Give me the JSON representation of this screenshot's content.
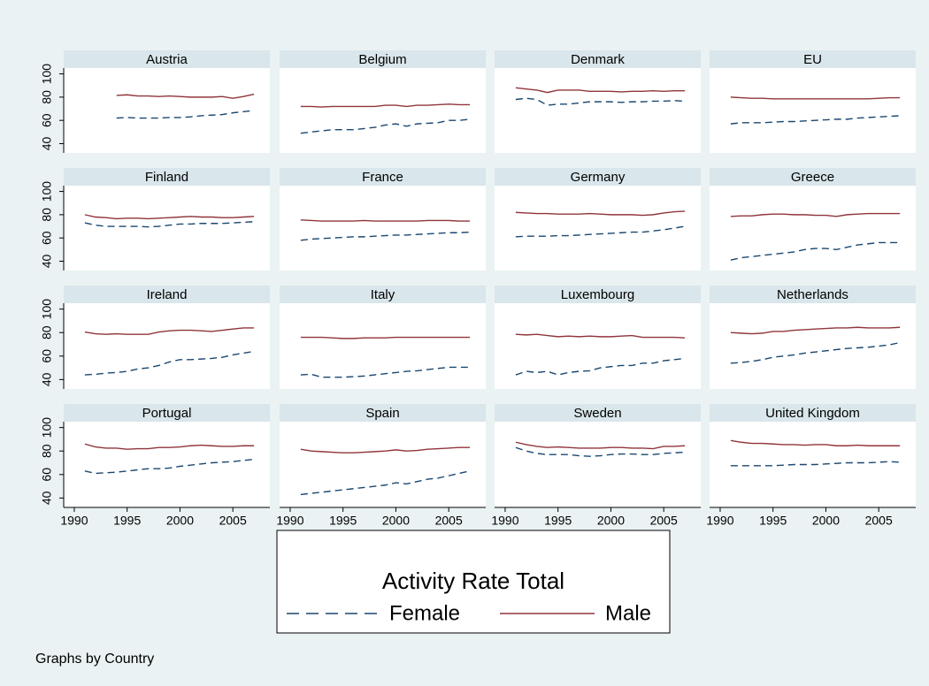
{
  "chart_data": {
    "type": "line",
    "x": [
      1991,
      1992,
      1993,
      1994,
      1995,
      1996,
      1997,
      1998,
      1999,
      2000,
      2001,
      2002,
      2003,
      2004,
      2005,
      2006,
      2007
    ],
    "xlim": [
      1989,
      2008.5
    ],
    "xticks": [
      1990,
      1995,
      2000,
      2005
    ],
    "ylim": [
      32,
      105
    ],
    "yticks": [
      40,
      60,
      80,
      100
    ],
    "series": [
      {
        "name": "Female",
        "color": "#1a476f",
        "dashed": true
      },
      {
        "name": "Male",
        "color": "#90353b",
        "dashed": false
      }
    ],
    "legend_title": "Activity Rate Total",
    "note": "Graphs by Country",
    "panels": [
      {
        "title": "Austria",
        "series": [
          {
            "values": [
              null,
              null,
              null,
              62,
              62.5,
              62,
              62,
              62,
              62.5,
              62.5,
              63,
              64,
              64.5,
              65,
              66.5,
              67.5,
              68.5
            ]
          },
          {
            "values": [
              null,
              null,
              null,
              81.5,
              82,
              81,
              81,
              80.5,
              81,
              80.5,
              80,
              80,
              80,
              80.5,
              79,
              80.5,
              82.5
            ]
          }
        ]
      },
      {
        "title": "Belgium",
        "series": [
          {
            "values": [
              49,
              50,
              51,
              52,
              52,
              52,
              53,
              54,
              56,
              57,
              55,
              57,
              57.5,
              58,
              60,
              60,
              61
            ]
          },
          {
            "values": [
              72,
              72,
              71.5,
              72,
              72,
              72,
              72,
              72,
              73,
              73,
              72,
              73,
              73,
              73.5,
              74,
              73.5,
              73.5
            ]
          }
        ]
      },
      {
        "title": "Denmark",
        "series": [
          {
            "values": [
              78,
              79,
              78,
              73,
              74,
              74,
              75,
              76,
              76,
              76,
              75.5,
              76,
              76,
              76.5,
              76.5,
              77,
              76.5
            ]
          },
          {
            "values": [
              88,
              87,
              86,
              84,
              86,
              86,
              86,
              85,
              85,
              85,
              84.5,
              85,
              85,
              85.5,
              85,
              85.5,
              85.5
            ]
          }
        ]
      },
      {
        "title": "EU",
        "series": [
          {
            "values": [
              57,
              58,
              58,
              58,
              58.5,
              59,
              59,
              59.5,
              60,
              60.5,
              61,
              61,
              62,
              62.5,
              63,
              63.5,
              64
            ]
          },
          {
            "values": [
              80,
              79.5,
              79,
              79,
              78.5,
              78.5,
              78.5,
              78.5,
              78.5,
              78.5,
              78.5,
              78.5,
              78.5,
              78.5,
              79,
              79.5,
              79.5
            ]
          }
        ]
      },
      {
        "title": "Finland",
        "series": [
          {
            "values": [
              73,
              71,
              70,
              70,
              70,
              70,
              69.5,
              70,
              71,
              72,
              72,
              72.5,
              72.5,
              72.5,
              73,
              73.5,
              74
            ]
          },
          {
            "values": [
              80,
              78,
              77.5,
              76.5,
              77,
              77,
              76.5,
              77,
              77.5,
              78,
              78.5,
              78,
              78,
              77.5,
              77.5,
              78,
              78.5
            ]
          }
        ]
      },
      {
        "title": "France",
        "series": [
          {
            "values": [
              58,
              59,
              59.5,
              60,
              60.5,
              61,
              61,
              61.5,
              62,
              62.5,
              62.5,
              63,
              63.5,
              64,
              64.5,
              64.5,
              65
            ]
          },
          {
            "values": [
              75.5,
              75,
              74.5,
              74.5,
              74.5,
              74.5,
              75,
              74.5,
              74.5,
              74.5,
              74.5,
              74.5,
              75,
              75,
              75,
              74.5,
              74.5
            ]
          }
        ]
      },
      {
        "title": "Germany",
        "series": [
          {
            "values": [
              61,
              61.5,
              61.5,
              61.5,
              62,
              62,
              62.5,
              63,
              63.5,
              64,
              64.5,
              65,
              65,
              66,
              67,
              68.5,
              70
            ]
          },
          {
            "values": [
              82,
              81.5,
              81,
              81,
              80.5,
              80.5,
              80.5,
              81,
              80.5,
              80,
              80,
              80,
              79.5,
              80,
              81.5,
              82.5,
              83
            ]
          }
        ]
      },
      {
        "title": "Greece",
        "series": [
          {
            "values": [
              41,
              43,
              44,
              45,
              46,
              47,
              48,
              50,
              51,
              51,
              50,
              52,
              54,
              55,
              56,
              56,
              56
            ]
          },
          {
            "values": [
              78.5,
              79,
              79,
              80,
              80.5,
              80.5,
              80,
              80,
              79.5,
              79.5,
              78.5,
              80,
              80.5,
              81,
              81,
              81,
              81
            ]
          }
        ]
      },
      {
        "title": "Ireland",
        "series": [
          {
            "values": [
              44,
              44.5,
              45.5,
              46,
              47,
              49,
              50,
              52,
              55,
              57,
              57,
              57.5,
              58,
              59,
              61,
              62.5,
              64
            ]
          },
          {
            "values": [
              80.5,
              79,
              78.5,
              79,
              78.5,
              78.5,
              78.5,
              80.5,
              81.5,
              82,
              82,
              81.5,
              81,
              82,
              83,
              84,
              84
            ]
          }
        ]
      },
      {
        "title": "Italy",
        "series": [
          {
            "values": [
              44,
              44.5,
              42,
              42,
              42,
              42.5,
              43,
              44,
              45,
              46,
              47,
              47.5,
              48.5,
              49.5,
              50.5,
              50.5,
              50.5
            ]
          },
          {
            "values": [
              76,
              76,
              76,
              75.5,
              75,
              75,
              75.5,
              75.5,
              75.5,
              76,
              76,
              76,
              76,
              76,
              76,
              76,
              76
            ]
          }
        ]
      },
      {
        "title": "Luxembourg",
        "series": [
          {
            "values": [
              44,
              47,
              46,
              47,
              44,
              46,
              47,
              47.5,
              50,
              51,
              52,
              52,
              54,
              54,
              56,
              57,
              58
            ]
          },
          {
            "values": [
              78.5,
              78,
              78.5,
              77.5,
              76.5,
              77,
              76.5,
              77,
              76.5,
              76.5,
              77,
              77.5,
              76,
              76,
              76,
              76,
              75.5
            ]
          }
        ]
      },
      {
        "title": "Netherlands",
        "series": [
          {
            "values": [
              54,
              54.5,
              55.5,
              57,
              59,
              60,
              61,
              62.5,
              63.5,
              64.5,
              65.5,
              66.5,
              67,
              67.5,
              68.5,
              69.5,
              71.5
            ]
          },
          {
            "values": [
              80,
              79.5,
              79,
              79.5,
              81,
              81,
              82,
              82.5,
              83,
              83.5,
              84,
              84,
              84.5,
              84,
              84,
              84,
              84.5
            ]
          }
        ]
      },
      {
        "title": "Portugal",
        "series": [
          {
            "values": [
              63,
              61,
              61.5,
              62,
              63,
              64,
              65,
              65,
              65.5,
              67,
              68,
              69,
              70,
              70.5,
              71,
              72,
              73
            ]
          },
          {
            "values": [
              86,
              83.5,
              82.5,
              82.5,
              81.5,
              82,
              82,
              83,
              83,
              83.5,
              84.5,
              85,
              84.5,
              84,
              84,
              84.5,
              84.5
            ]
          }
        ]
      },
      {
        "title": "Spain",
        "series": [
          {
            "values": [
              43,
              44,
              45,
              46,
              47,
              48,
              49,
              50,
              51,
              53,
              52,
              54,
              56,
              57,
              59,
              61,
              63
            ]
          },
          {
            "values": [
              81.5,
              80,
              79.5,
              79,
              78.5,
              78.5,
              79,
              79.5,
              80,
              81,
              80,
              80.5,
              81.5,
              82,
              82.5,
              83,
              83
            ]
          }
        ]
      },
      {
        "title": "Sweden",
        "series": [
          {
            "values": [
              83,
              80,
              78,
              77,
              77,
              77,
              76,
              75.5,
              76,
              77,
              77.5,
              77.5,
              77,
              77,
              78,
              78.5,
              79
            ]
          },
          {
            "values": [
              87.5,
              85.5,
              84,
              83,
              83.5,
              83,
              82.5,
              82.5,
              82.5,
              83,
              83,
              82.5,
              82.5,
              82,
              84,
              84,
              84.5
            ]
          }
        ]
      },
      {
        "title": "United Kingdom",
        "series": [
          {
            "values": [
              67.5,
              67.5,
              67.5,
              67.5,
              67.5,
              68,
              68.5,
              68.5,
              68.5,
              69,
              69.5,
              70,
              70,
              70,
              70.5,
              71,
              70.5
            ]
          },
          {
            "values": [
              89,
              87.5,
              86.5,
              86.5,
              86,
              85.5,
              85.5,
              85,
              85.5,
              85.5,
              84.5,
              84.5,
              85,
              84.5,
              84.5,
              84.5,
              84.5
            ]
          }
        ]
      }
    ]
  }
}
